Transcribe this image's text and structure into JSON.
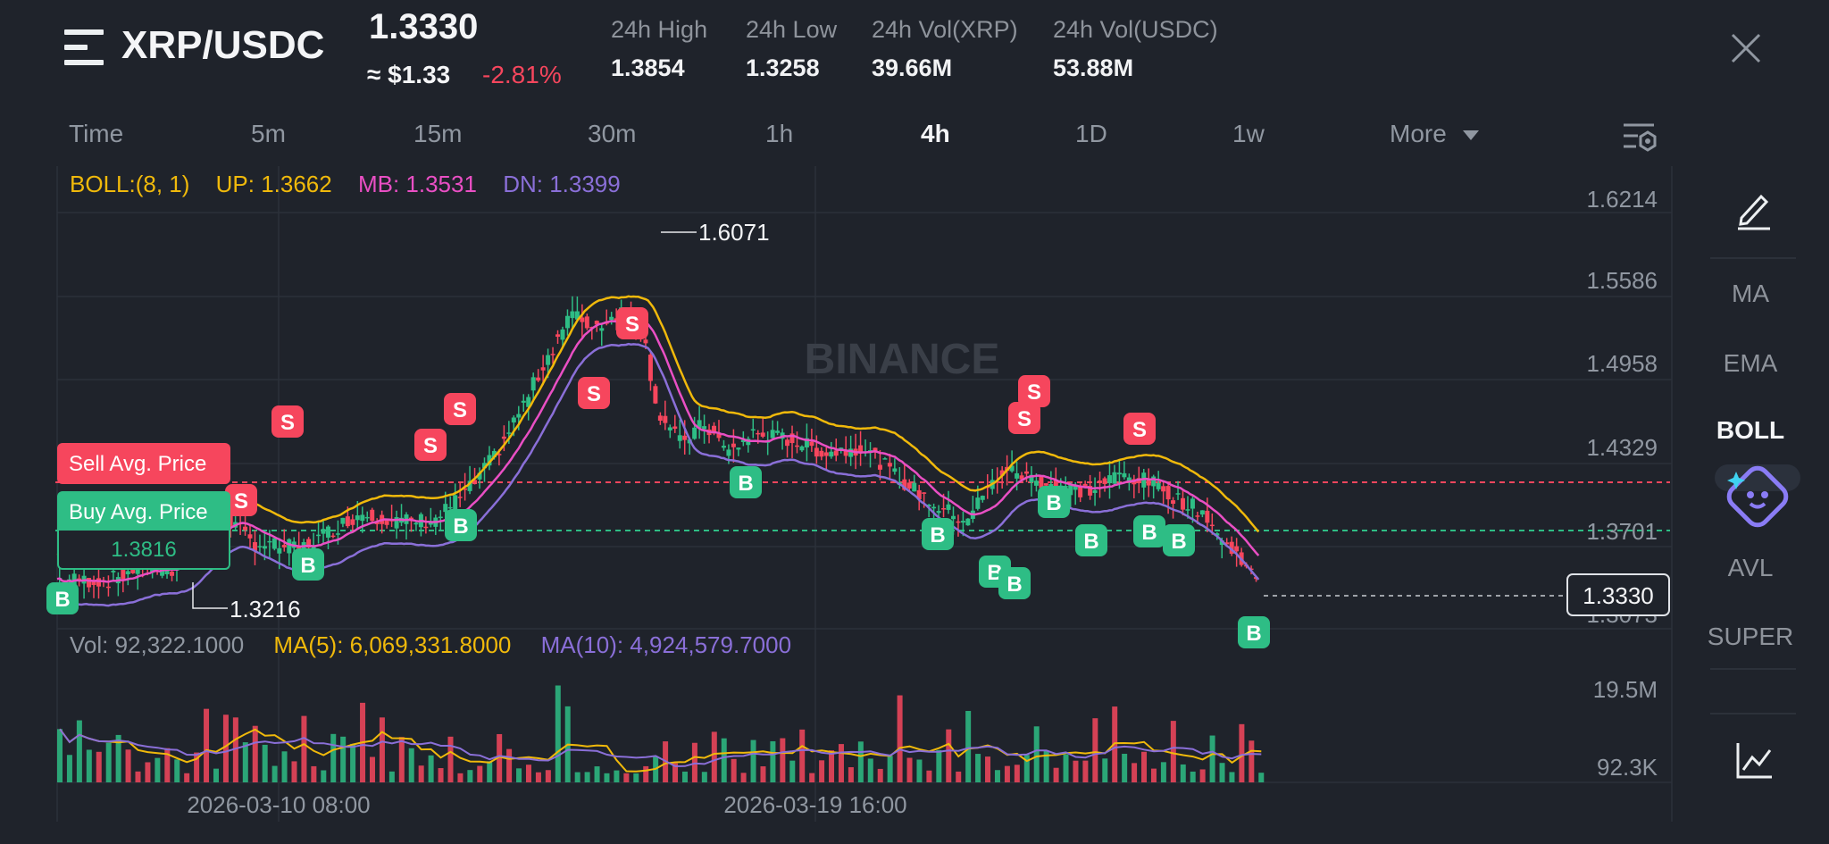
{
  "header": {
    "pair": "XRP/USDC",
    "last_price": "1.3330",
    "approx_usd": "≈ $1.33",
    "change_pct": "-2.81%",
    "stats": [
      {
        "label": "24h High",
        "value": "1.3854"
      },
      {
        "label": "24h Low",
        "value": "1.3258"
      },
      {
        "label": "24h Vol(XRP)",
        "value": "39.66M"
      },
      {
        "label": "24h Vol(USDC)",
        "value": "53.88M"
      }
    ]
  },
  "timeframes": [
    "Time",
    "5m",
    "15m",
    "30m",
    "1h",
    "4h",
    "1D",
    "1w",
    "More"
  ],
  "active_timeframe": "4h",
  "indicator_line": {
    "name": "BOLL:(8, 1)",
    "up": "UP: 1.3662",
    "mb": "MB: 1.3531",
    "dn": "DN: 1.3399"
  },
  "price_axis": [
    "1.6214",
    "1.5586",
    "1.4958",
    "1.4329",
    "1.3701",
    "1.3073"
  ],
  "current_price_tag": "1.3330",
  "high_marker": "1.6071",
  "low_marker": "1.3216",
  "watermark": "BINANCE",
  "avg_price": {
    "sell_label": "Sell Avg. Price",
    "buy_label": "Buy Avg. Price",
    "buy_value": "1.3816"
  },
  "volume": {
    "vol": "Vol: 92,322.1000",
    "ma5": "MA(5): 6,069,331.8000",
    "ma10": "MA(10): 4,924,579.7000",
    "axis_top": "19.5M",
    "axis_bottom": "92.3K"
  },
  "time_axis": [
    "2026-03-10 08:00",
    "2026-03-19 16:00"
  ],
  "trade_marker_labels": {
    "sell": "S",
    "buy": "B"
  },
  "right_panel": [
    "MA",
    "EMA",
    "BOLL",
    "AVL",
    "SUPER"
  ],
  "right_panel_active": "BOLL",
  "colors": {
    "background": "#1f232b",
    "up": "#2ebd85",
    "down": "#f6465d",
    "boll_up": "#f0b90b",
    "boll_mb": "#e94fc4",
    "boll_dn": "#8a6fd8"
  },
  "icons": {
    "menu": "menu-icon",
    "close": "close-icon",
    "settings": "chart-settings-icon",
    "draw": "pencil-icon",
    "ai": "ai-assistant-icon",
    "chart": "line-chart-icon"
  }
}
